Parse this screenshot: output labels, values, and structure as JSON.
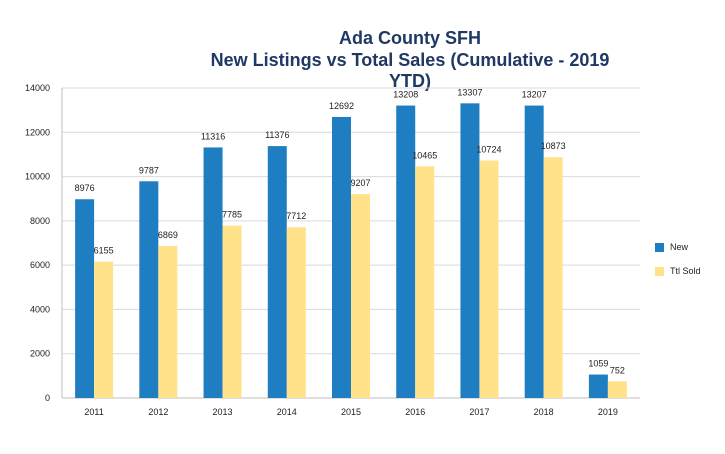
{
  "chart_data": {
    "type": "bar",
    "title": [
      "Ada County SFH",
      "New Listings vs Total Sales (Cumulative - 2019 YTD)"
    ],
    "categories": [
      "2011",
      "2012",
      "2013",
      "2014",
      "2015",
      "2016",
      "2017",
      "2018",
      "2019"
    ],
    "series": [
      {
        "name": "New",
        "values": [
          8976,
          9787,
          11316,
          11376,
          12692,
          13208,
          13307,
          13207,
          1059
        ],
        "color": "#1f7ec1"
      },
      {
        "name": "Ttl Sold",
        "values": [
          6155,
          6869,
          7785,
          7712,
          9207,
          10465,
          10724,
          10873,
          752
        ],
        "color": "#ffe28a"
      }
    ],
    "ylim": [
      0,
      14000
    ],
    "yticks": [
      0,
      2000,
      4000,
      6000,
      8000,
      10000,
      12000,
      14000
    ],
    "grid": true,
    "legend_position": "right",
    "data_labels": true
  }
}
